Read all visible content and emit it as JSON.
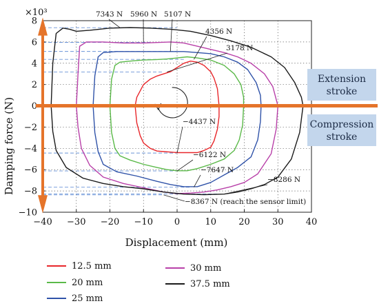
{
  "chart_data": {
    "type": "line",
    "title": "",
    "xlabel": "Displacement (mm)",
    "ylabel": "Damping force (N)",
    "y_multiplier": "×10³",
    "xlim": [
      -40,
      40
    ],
    "ylim": [
      -10,
      8
    ],
    "x_ticks": [
      "−40",
      "−30",
      "−20",
      "−10",
      "0",
      "10",
      "20",
      "30",
      "40"
    ],
    "y_ticks": [
      "−10",
      "−8",
      "−6",
      "−4",
      "−2",
      "0",
      "2",
      "4",
      "6",
      "8"
    ],
    "grid": true,
    "legend_position": "bottom",
    "stroke_labels": {
      "extension": "Extension\nstroke",
      "compression": "Compression\nstroke"
    },
    "annotations": [
      {
        "text": "7343 N",
        "x": -17,
        "y": 7.34
      },
      {
        "text": "5960 N",
        "x": -10,
        "y": 5.96
      },
      {
        "text": "5107 N",
        "x": -2,
        "y": 5.11
      },
      {
        "text": "4356 N",
        "x": 5,
        "y": 4.36
      },
      {
        "text": "3178 N",
        "x": -3,
        "y": 3.18
      },
      {
        "text": "−4437 N",
        "x": 0,
        "y": -4.44
      },
      {
        "text": "−6122 N",
        "x": 0,
        "y": -6.12
      },
      {
        "text": "−7647 N",
        "x": 5,
        "y": -7.65
      },
      {
        "text": "−8286 N",
        "x": 14,
        "y": -8.29
      },
      {
        "text": "−8367 N (reach the sensor limit)",
        "x": -4,
        "y": -8.37
      }
    ],
    "series": [
      {
        "name": "12.5 mm",
        "color": "#e8262a",
        "x": [
          -12.5,
          -12,
          -11,
          -10,
          -8,
          -6,
          -4,
          -2,
          0,
          2,
          4,
          6,
          8,
          10,
          11,
          12,
          12.5,
          12.5,
          12,
          11,
          10,
          8,
          6,
          4,
          2,
          0,
          -2,
          -4,
          -6,
          -8,
          -10,
          -11,
          -12,
          -12.5
        ],
        "y": [
          0.0,
          0.8,
          1.4,
          2.0,
          2.5,
          2.8,
          3.0,
          3.2,
          3.6,
          4.0,
          4.2,
          4.1,
          3.8,
          3.2,
          2.6,
          1.6,
          0.0,
          -1.0,
          -2.2,
          -3.3,
          -3.9,
          -4.2,
          -4.4,
          -4.4,
          -4.4,
          -4.4,
          -4.35,
          -4.3,
          -4.25,
          -4.0,
          -3.5,
          -2.8,
          -1.6,
          0.0
        ]
      },
      {
        "name": "20 mm",
        "color": "#5ab948",
        "x": [
          -20,
          -19.5,
          -18.5,
          -17,
          -14,
          -10,
          -6,
          -3,
          0,
          3,
          6,
          10,
          14,
          17,
          19,
          19.8,
          19.8,
          19.5,
          18.5,
          17,
          14,
          10,
          6,
          3,
          0,
          -3,
          -6,
          -10,
          -14,
          -17,
          -18.5,
          -19.5,
          -20
        ],
        "y": [
          0.0,
          2.5,
          3.8,
          4.1,
          4.2,
          4.3,
          4.35,
          4.4,
          4.5,
          4.6,
          4.5,
          4.3,
          3.8,
          3.0,
          2.0,
          0.8,
          0.0,
          -1.8,
          -3.2,
          -4.2,
          -5.0,
          -5.5,
          -5.9,
          -6.1,
          -6.1,
          -6.0,
          -5.8,
          -5.5,
          -5.1,
          -4.7,
          -4.0,
          -2.5,
          0.0
        ]
      },
      {
        "name": "25 mm",
        "color": "#2f52a8",
        "x": [
          -25,
          -24.5,
          -23.5,
          -22,
          -18,
          -12,
          -6,
          -2,
          2,
          6,
          10,
          14,
          18,
          21,
          23.5,
          24.8,
          25,
          24.8,
          24,
          22,
          18,
          14,
          10,
          6,
          2,
          -2,
          -6,
          -12,
          -18,
          -22,
          -23.5,
          -24.5,
          -25
        ],
        "y": [
          0.0,
          2.8,
          4.6,
          5.0,
          5.1,
          5.1,
          5.1,
          5.1,
          5.1,
          5.0,
          4.9,
          4.6,
          4.1,
          3.4,
          2.2,
          1.0,
          0.0,
          -1.5,
          -3.2,
          -4.8,
          -5.8,
          -6.5,
          -7.2,
          -7.6,
          -7.6,
          -7.4,
          -7.1,
          -6.6,
          -6.2,
          -5.5,
          -4.3,
          -2.5,
          0.0
        ]
      },
      {
        "name": "30 mm",
        "color": "#b83fa8",
        "x": [
          -30,
          -29.5,
          -29,
          -27,
          -22,
          -16,
          -10,
          -6,
          -2,
          2,
          6,
          10,
          14,
          18,
          22,
          26,
          28.5,
          30,
          29.5,
          28,
          24,
          20,
          16,
          12,
          8,
          4,
          0,
          -4,
          -10,
          -16,
          -22,
          -26,
          -28.5,
          -29.5,
          -30
        ],
        "y": [
          0.0,
          3.0,
          5.6,
          6.0,
          6.0,
          5.9,
          5.9,
          5.95,
          6.0,
          5.9,
          5.6,
          5.3,
          5.0,
          4.6,
          4.0,
          3.0,
          1.8,
          0.0,
          -2.2,
          -4.5,
          -6.4,
          -7.2,
          -7.6,
          -7.9,
          -8.1,
          -8.2,
          -8.25,
          -8.1,
          -7.7,
          -7.3,
          -6.7,
          -5.6,
          -4.0,
          -2.0,
          0.0
        ]
      },
      {
        "name": "37.5 mm",
        "color": "#1a1a1a",
        "x": [
          -37.5,
          -37,
          -36,
          -34,
          -32,
          -30,
          -26,
          -20,
          -14,
          -8,
          -2,
          4,
          10,
          16,
          22,
          28,
          32,
          35,
          37,
          37.5,
          36.5,
          34,
          30,
          26,
          22,
          18,
          14,
          8,
          2,
          -4,
          -10,
          -16,
          -22,
          -28,
          -33,
          -36,
          -37,
          -37.5
        ],
        "y": [
          0.0,
          4.0,
          6.8,
          7.3,
          7.2,
          7.0,
          7.1,
          7.3,
          7.35,
          7.3,
          7.2,
          7.0,
          6.6,
          6.1,
          5.5,
          4.6,
          3.6,
          2.2,
          0.8,
          0.0,
          -2.5,
          -5.0,
          -6.7,
          -7.4,
          -7.8,
          -8.1,
          -8.3,
          -8.35,
          -8.3,
          -8.1,
          -7.8,
          -7.6,
          -7.3,
          -6.8,
          -5.8,
          -4.2,
          -2.4,
          0.0
        ]
      }
    ]
  }
}
